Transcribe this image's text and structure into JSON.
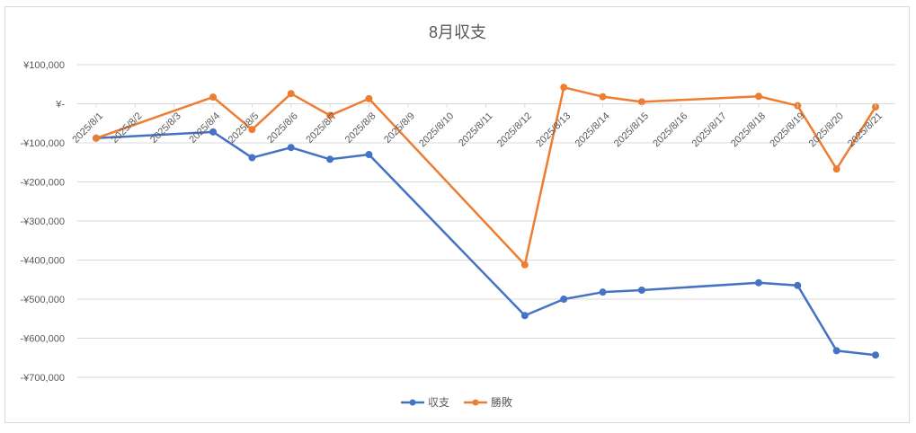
{
  "chart_data": {
    "type": "line",
    "title": "8月収支",
    "x": [
      "2025/8/1",
      "2025/8/2",
      "2025/8/3",
      "2025/8/4",
      "2025/8/5",
      "2025/8/6",
      "2025/8/7",
      "2025/8/8",
      "2025/8/9",
      "2025/8/10",
      "2025/8/11",
      "2025/8/12",
      "2025/8/13",
      "2025/8/14",
      "2025/8/15",
      "2025/8/16",
      "2025/8/17",
      "2025/8/18",
      "2025/8/19",
      "2025/8/20",
      "2025/8/21"
    ],
    "ylim": [
      -700000,
      100000
    ],
    "yticks": [
      100000,
      0,
      -100000,
      -200000,
      -300000,
      -400000,
      -500000,
      -600000,
      -700000
    ],
    "ytick_labels": [
      "¥100,000",
      "¥-",
      "-¥100,000",
      "-¥200,000",
      "-¥300,000",
      "-¥400,000",
      "-¥500,000",
      "-¥600,000",
      "-¥700,000"
    ],
    "grid": true,
    "legend": "bottom",
    "series": [
      {
        "name": "収支",
        "color": "#4472C4",
        "points": [
          [
            "2025/8/1",
            -88000
          ],
          [
            "2025/8/4",
            -72000
          ],
          [
            "2025/8/5",
            -138000
          ],
          [
            "2025/8/6",
            -112000
          ],
          [
            "2025/8/7",
            -142000
          ],
          [
            "2025/8/8",
            -130000
          ],
          [
            "2025/8/12",
            -542000
          ],
          [
            "2025/8/13",
            -500000
          ],
          [
            "2025/8/14",
            -482000
          ],
          [
            "2025/8/15",
            -477000
          ],
          [
            "2025/8/18",
            -458000
          ],
          [
            "2025/8/19",
            -465000
          ],
          [
            "2025/8/20",
            -632000
          ],
          [
            "2025/8/21",
            -643000
          ]
        ]
      },
      {
        "name": "勝敗",
        "color": "#ED7D31",
        "points": [
          [
            "2025/8/1",
            -88000
          ],
          [
            "2025/8/4",
            17000
          ],
          [
            "2025/8/5",
            -66000
          ],
          [
            "2025/8/6",
            26000
          ],
          [
            "2025/8/7",
            -30000
          ],
          [
            "2025/8/8",
            13000
          ],
          [
            "2025/8/12",
            -412000
          ],
          [
            "2025/8/13",
            42000
          ],
          [
            "2025/8/14",
            18000
          ],
          [
            "2025/8/15",
            5000
          ],
          [
            "2025/8/18",
            19000
          ],
          [
            "2025/8/19",
            -5000
          ],
          [
            "2025/8/20",
            -167000
          ],
          [
            "2025/8/21",
            -8000
          ]
        ]
      }
    ]
  }
}
